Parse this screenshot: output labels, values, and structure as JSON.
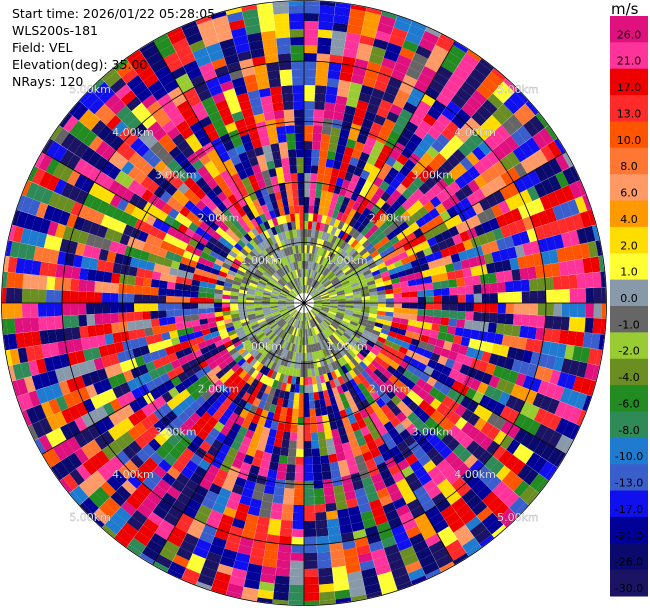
{
  "info": {
    "start_time": "Start time: 2026/01/22 05:28:05",
    "device": "WLS200s-181",
    "field": "Field: VEL",
    "elevation": "Elevation(deg): 35.00",
    "nrays": "NRays: 120"
  },
  "colorbar": {
    "unit": "m/s",
    "ticks": [
      "26.0",
      "21.0",
      "17.0",
      "13.0",
      "10.0",
      "8.0",
      "6.0",
      "4.0",
      "2.0",
      "1.0",
      "0.0",
      "-1.0",
      "-2.0",
      "-4.0",
      "-6.0",
      "-8.0",
      "-10.0",
      "-13.0",
      "-17.0",
      "-21.0",
      "-26.0",
      "-30.0"
    ],
    "colors": [
      "#e0117f",
      "#ff3399",
      "#ee0000",
      "#ff2a2a",
      "#ff5500",
      "#ff7733",
      "#ff9966",
      "#ff9900",
      "#ffdd00",
      "#ffff33",
      "#8899aa",
      "#666666",
      "#99cc33",
      "#6b8e23",
      "#228b22",
      "#2e8b57",
      "#1e7bcf",
      "#3a5fcd",
      "#1010ee",
      "#000099",
      "#0a0a6e",
      "#1b1464"
    ]
  },
  "chart_data": {
    "type": "heatmap",
    "projection": "polar PPI",
    "field": "VEL",
    "nrays": 120,
    "range_rings_km": [
      1.0,
      2.0,
      3.0,
      4.0,
      5.0
    ],
    "ring_labels": [
      "1.00km",
      "2.00km",
      "3.00km",
      "4.00km",
      "5.00km"
    ],
    "velocity_classes_ms": [
      -30.0,
      -26.0,
      -21.0,
      -17.0,
      -13.0,
      -10.0,
      -8.0,
      -6.0,
      -4.0,
      -2.0,
      -1.0,
      0.0,
      1.0,
      2.0,
      4.0,
      6.0,
      8.0,
      10.0,
      13.0,
      17.0,
      21.0,
      26.0
    ],
    "near_field": "low velocities (yellow / olive green) within ~1.2 km",
    "far_field": "noisy mixed velocities beyond ~1.5 km"
  }
}
